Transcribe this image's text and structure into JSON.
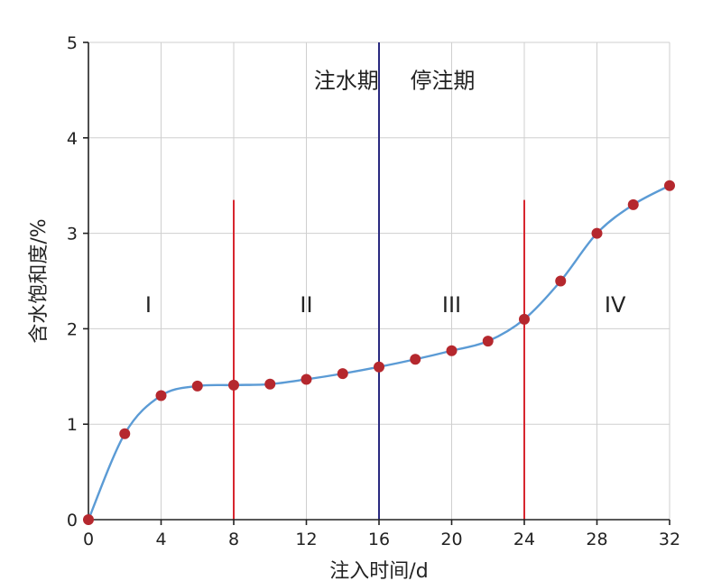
{
  "chart_data": {
    "type": "line",
    "xlabel": "注入时间/d",
    "ylabel": "含水饱和度/%",
    "xlim": [
      0,
      32
    ],
    "ylim": [
      0,
      5
    ],
    "x_ticks": [
      0,
      4,
      8,
      12,
      16,
      20,
      24,
      28,
      32
    ],
    "y_ticks": [
      0,
      1,
      2,
      3,
      4,
      5
    ],
    "grid": true,
    "series": [
      {
        "x": [
          0,
          2,
          4,
          6,
          8,
          10,
          12,
          14,
          16,
          18,
          20,
          22,
          24,
          26,
          28,
          30,
          32
        ],
        "values": [
          0,
          0.9,
          1.3,
          1.4,
          1.41,
          1.42,
          1.47,
          1.53,
          1.6,
          1.68,
          1.77,
          1.87,
          2.1,
          2.5,
          3.0,
          3.3,
          3.5
        ],
        "line_color": "#5b9bd5",
        "marker_color": "#b5282e"
      }
    ],
    "vertical_lines": [
      {
        "x": 8,
        "y_top": 3.35,
        "color": "#d7262f"
      },
      {
        "x": 16,
        "y_top": 5,
        "color": "#2a2a80"
      },
      {
        "x": 24,
        "y_top": 3.35,
        "color": "#d7262f"
      }
    ],
    "annotations": [
      {
        "text": "注水期",
        "x": 14.2,
        "y": 4.6
      },
      {
        "text": "停注期",
        "x": 19.5,
        "y": 4.6
      }
    ],
    "regions": [
      {
        "label": "I",
        "x": 3.3,
        "y": 2.25
      },
      {
        "label": "II",
        "x": 12,
        "y": 2.25
      },
      {
        "label": "III",
        "x": 20,
        "y": 2.25
      },
      {
        "label": "IV",
        "x": 29,
        "y": 2.25
      }
    ]
  }
}
